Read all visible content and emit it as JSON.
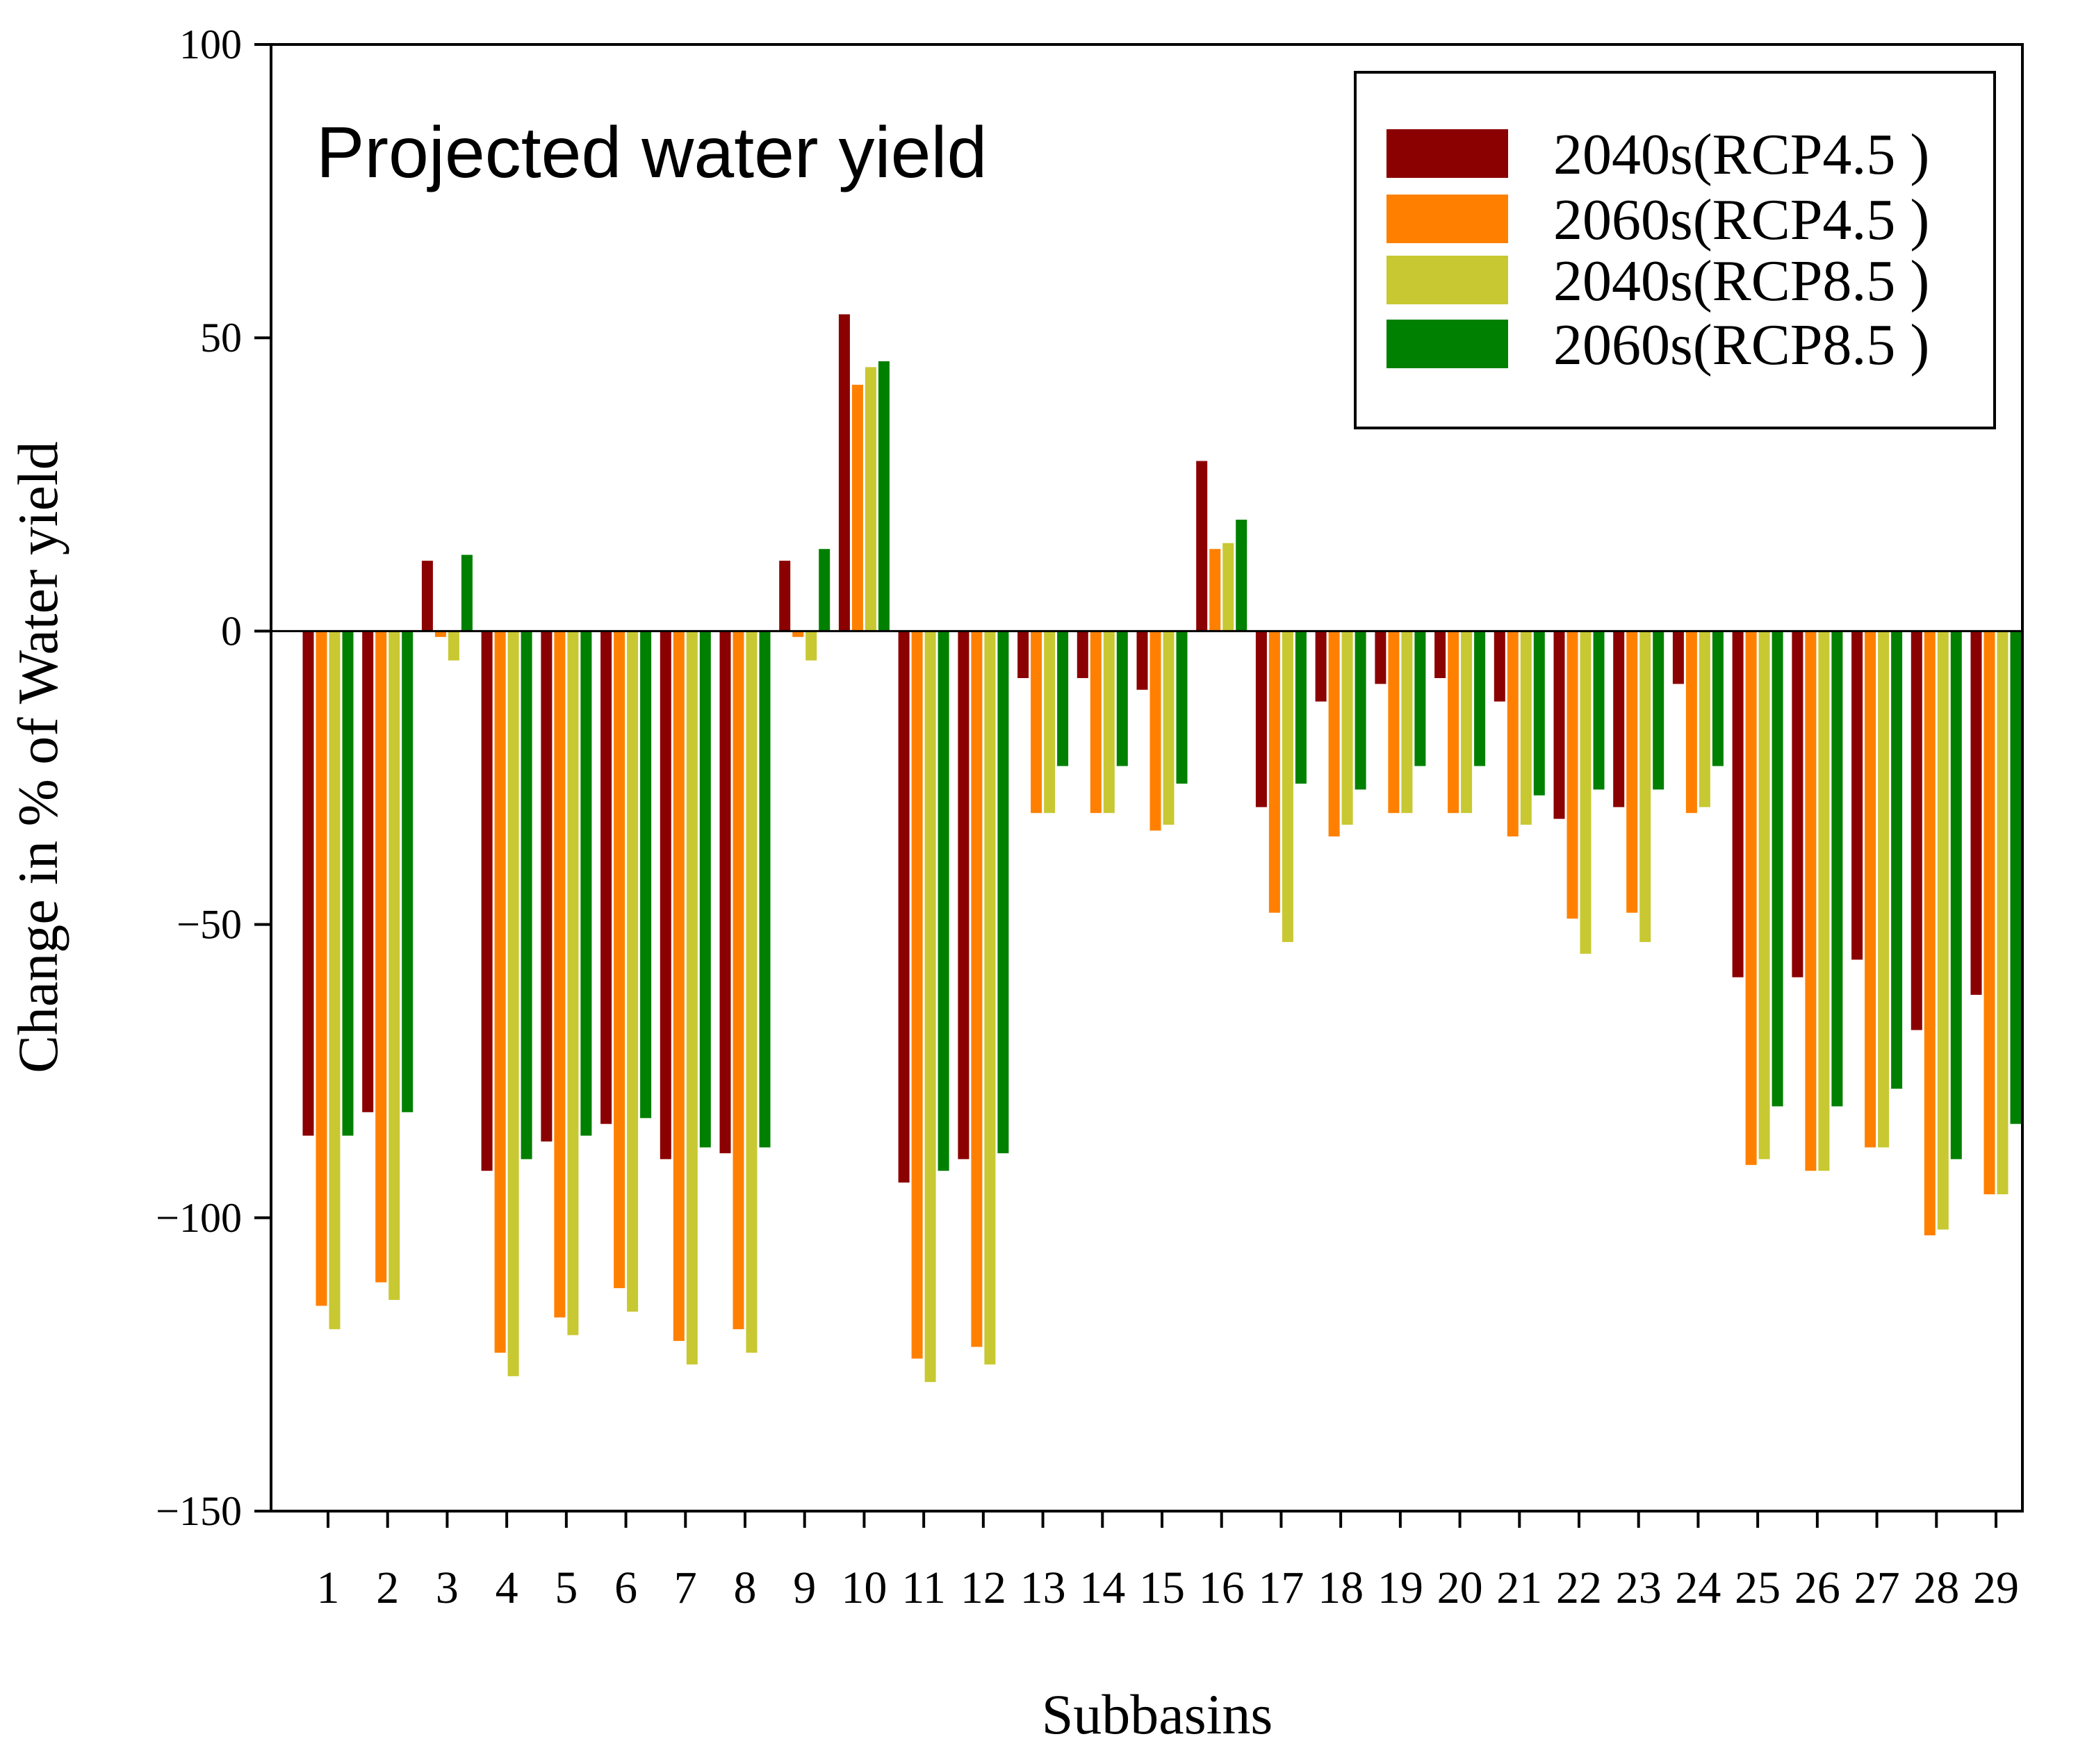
{
  "chart_data": {
    "type": "bar",
    "title": "Projected water yield",
    "xlabel": "Subbasins",
    "ylabel": "Change in % of Water yield",
    "ylim": [
      -150,
      100
    ],
    "yticks": [
      -150,
      -100,
      -50,
      0,
      50,
      100
    ],
    "ytick_labels": [
      "−150",
      "−100",
      "−50",
      "0",
      "50",
      "100"
    ],
    "legend_position": "top-right",
    "grid": false,
    "categories": [
      "1",
      "2",
      "3",
      "4",
      "5",
      "6",
      "7",
      "8",
      "9",
      "10",
      "11",
      "12",
      "13",
      "14",
      "15",
      "16",
      "17",
      "18",
      "19",
      "20",
      "21",
      "22",
      "23",
      "24",
      "25",
      "26",
      "27",
      "28",
      "29"
    ],
    "series": [
      {
        "name": "2040s(RCP4.5 )",
        "color": "#8b0000",
        "values": [
          -86,
          -82,
          12,
          -92,
          -87,
          -84,
          -90,
          -89,
          12,
          54,
          -94,
          -90,
          -8,
          -8,
          -10,
          29,
          -30,
          -12,
          -9,
          -8,
          -12,
          -32,
          -30,
          -9,
          -59,
          -59,
          -56,
          -68,
          -62
        ]
      },
      {
        "name": "2060s(RCP4.5 )",
        "color": "#ff8000",
        "values": [
          -115,
          -111,
          -1,
          -123,
          -117,
          -112,
          -121,
          -119,
          -1,
          42,
          -124,
          -122,
          -31,
          -31,
          -34,
          14,
          -48,
          -35,
          -31,
          -31,
          -35,
          -49,
          -48,
          -31,
          -91,
          -92,
          -88,
          -103,
          -96
        ]
      },
      {
        "name": "2040s(RCP8.5 )",
        "color": "#c8c832",
        "values": [
          -119,
          -114,
          -5,
          -127,
          -120,
          -116,
          -125,
          -123,
          -5,
          45,
          -128,
          -125,
          -31,
          -31,
          -33,
          15,
          -53,
          -33,
          -31,
          -31,
          -33,
          -55,
          -53,
          -30,
          -90,
          -92,
          -88,
          -102,
          -96
        ]
      },
      {
        "name": "2060s(RCP8.5 )",
        "color": "#008000",
        "values": [
          -86,
          -82,
          13,
          -90,
          -86,
          -83,
          -88,
          -88,
          14,
          46,
          -92,
          -89,
          -23,
          -23,
          -26,
          19,
          -26,
          -27,
          -23,
          -23,
          -28,
          -27,
          -27,
          -23,
          -81,
          -81,
          -78,
          -90,
          -84
        ]
      }
    ]
  }
}
